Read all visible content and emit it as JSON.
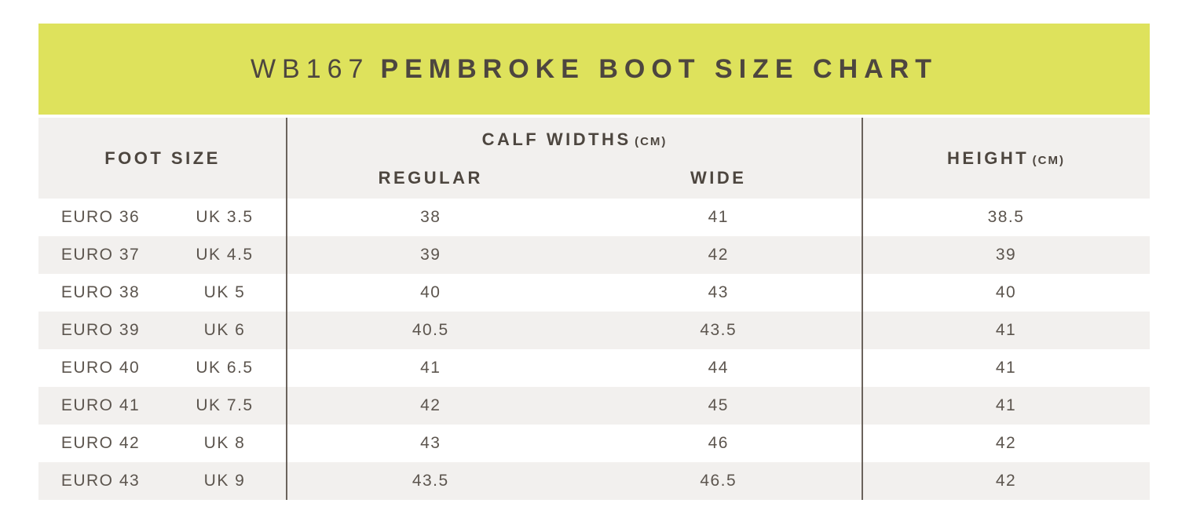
{
  "title": {
    "model": "WB167",
    "product": "PEMBROKE BOOT SIZE CHART"
  },
  "table": {
    "headers": {
      "foot_size": "FOOT SIZE",
      "calf_widths": "CALF WIDTHS",
      "calf_widths_unit": "(CM)",
      "regular": "REGULAR",
      "wide": "WIDE",
      "height": "HEIGHT",
      "height_unit": "(CM)"
    },
    "rows": [
      {
        "euro": "EURO 36",
        "uk": "UK 3.5",
        "regular": "38",
        "wide": "41",
        "height": "38.5"
      },
      {
        "euro": "EURO 37",
        "uk": "UK 4.5",
        "regular": "39",
        "wide": "42",
        "height": "39"
      },
      {
        "euro": "EURO 38",
        "uk": "UK 5",
        "regular": "40",
        "wide": "43",
        "height": "40"
      },
      {
        "euro": "EURO 39",
        "uk": "UK 6",
        "regular": "40.5",
        "wide": "43.5",
        "height": "41"
      },
      {
        "euro": "EURO 40",
        "uk": "UK 6.5",
        "regular": "41",
        "wide": "44",
        "height": "41"
      },
      {
        "euro": "EURO 41",
        "uk": "UK 7.5",
        "regular": "42",
        "wide": "45",
        "height": "41"
      },
      {
        "euro": "EURO 42",
        "uk": "UK 8",
        "regular": "43",
        "wide": "46",
        "height": "42"
      },
      {
        "euro": "EURO 43",
        "uk": "UK 9",
        "regular": "43.5",
        "wide": "46.5",
        "height": "42"
      }
    ]
  },
  "colors": {
    "banner": "#dee25c",
    "header_bg": "#f2f0ee",
    "row_bg": "#ffffff",
    "row_alt_bg": "#f2f0ee",
    "heading_text": "#4d463f",
    "data_text": "#5c554e",
    "divider": "#6b635c"
  },
  "chart_data": {
    "type": "table",
    "title": "WB167 PEMBROKE BOOT SIZE CHART",
    "columns": [
      "FOOT SIZE (EURO)",
      "FOOT SIZE (UK)",
      "CALF WIDTH REGULAR (CM)",
      "CALF WIDTH WIDE (CM)",
      "HEIGHT (CM)"
    ],
    "rows": [
      [
        "EURO 36",
        "UK 3.5",
        38,
        41,
        38.5
      ],
      [
        "EURO 37",
        "UK 4.5",
        39,
        42,
        39
      ],
      [
        "EURO 38",
        "UK 5",
        40,
        43,
        40
      ],
      [
        "EURO 39",
        "UK 6",
        40.5,
        43.5,
        41
      ],
      [
        "EURO 40",
        "UK 6.5",
        41,
        44,
        41
      ],
      [
        "EURO 41",
        "UK 7.5",
        42,
        45,
        41
      ],
      [
        "EURO 42",
        "UK 8",
        43,
        46,
        42
      ],
      [
        "EURO 43",
        "UK 9",
        43.5,
        46.5,
        42
      ]
    ]
  }
}
